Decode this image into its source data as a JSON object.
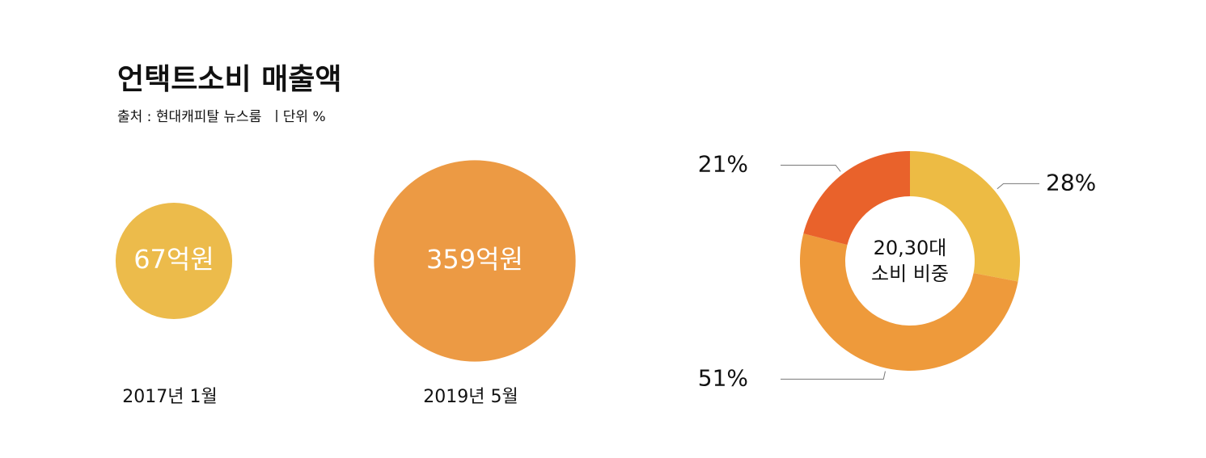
{
  "chart_data": [
    {
      "type": "bubble",
      "title": "언택트소비 매출액",
      "subtitle": "출처 : 현대캐피탈 뉴스룸  ㅣ단위 %",
      "categories": [
        "2017년 1월",
        "2019년 5월"
      ],
      "values": [
        67,
        359
      ],
      "value_labels": [
        "67억원",
        "359억원"
      ],
      "colors": [
        "#ecbb4b",
        "#ec9a44"
      ]
    },
    {
      "type": "donut",
      "center_text": [
        "20,30대",
        "소비 비중"
      ],
      "values": [
        28,
        51,
        21
      ],
      "value_labels": [
        "28%",
        "51%",
        "21%"
      ],
      "colors": [
        "#edbb44",
        "#ee9a3b",
        "#e9622b"
      ]
    }
  ]
}
